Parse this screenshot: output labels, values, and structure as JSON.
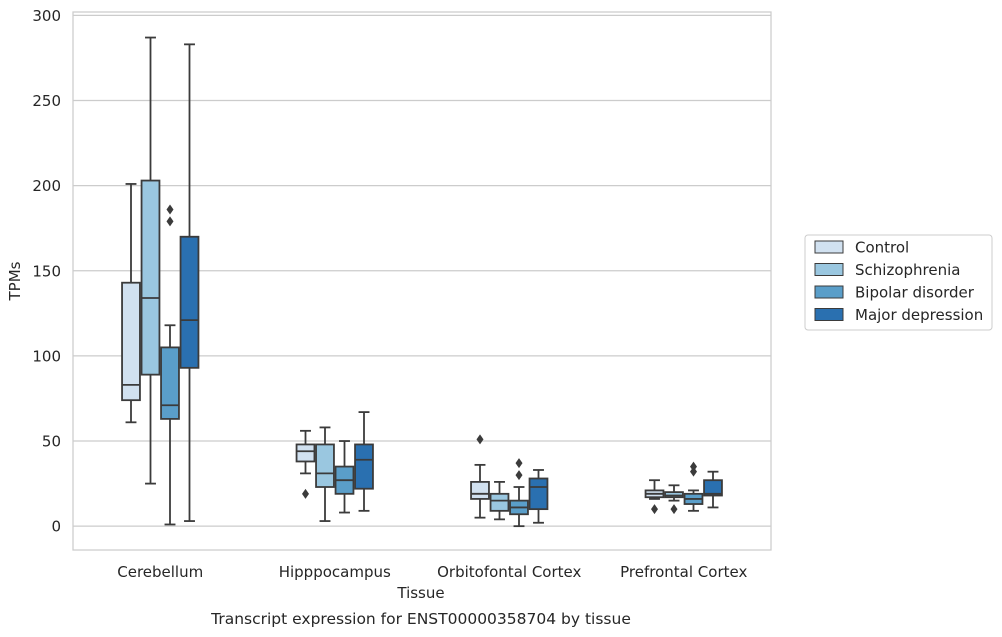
{
  "chart_data": {
    "type": "boxplot",
    "title": "Transcript expression for ENST00000358704 by tissue",
    "xlabel": "Tissue",
    "ylabel": "TPMs",
    "ylim": [
      -14,
      302
    ],
    "yticks": [
      0,
      50,
      100,
      150,
      200,
      250,
      300
    ],
    "grid": "horizontal",
    "legend_position": "right",
    "categories": [
      "Cerebellum",
      "Hipppocampus",
      "Orbitofontal Cortex",
      "Prefrontal Cortex"
    ],
    "series": [
      {
        "name": "Control",
        "color": "#d1e1f0",
        "boxes": [
          {
            "whisker_low": 61,
            "q1": 74,
            "median": 83,
            "q3": 143,
            "whisker_high": 201,
            "outliers": []
          },
          {
            "whisker_low": 31,
            "q1": 38,
            "median": 44,
            "q3": 48,
            "whisker_high": 56,
            "outliers": [
              19
            ]
          },
          {
            "whisker_low": 5,
            "q1": 16,
            "median": 19,
            "q3": 26,
            "whisker_high": 36,
            "outliers": [
              51
            ]
          },
          {
            "whisker_low": 16,
            "q1": 17,
            "median": 19,
            "q3": 21,
            "whisker_high": 27,
            "outliers": [
              10
            ]
          }
        ]
      },
      {
        "name": "Schizophrenia",
        "color": "#9ac7e0",
        "boxes": [
          {
            "whisker_low": 25,
            "q1": 89,
            "median": 134,
            "q3": 203,
            "whisker_high": 287,
            "outliers": []
          },
          {
            "whisker_low": 3,
            "q1": 23,
            "median": 31,
            "q3": 48,
            "whisker_high": 58,
            "outliers": []
          },
          {
            "whisker_low": 4,
            "q1": 9,
            "median": 15,
            "q3": 19,
            "whisker_high": 26,
            "outliers": []
          },
          {
            "whisker_low": 15,
            "q1": 17,
            "median": 18,
            "q3": 20,
            "whisker_high": 24,
            "outliers": [
              10
            ]
          }
        ]
      },
      {
        "name": "Bipolar disorder",
        "color": "#5a9ec9",
        "boxes": [
          {
            "whisker_low": 1,
            "q1": 63,
            "median": 71,
            "q3": 105,
            "whisker_high": 118,
            "outliers": [
              179,
              186
            ]
          },
          {
            "whisker_low": 8,
            "q1": 19,
            "median": 27,
            "q3": 35,
            "whisker_high": 50,
            "outliers": []
          },
          {
            "whisker_low": 0,
            "q1": 7,
            "median": 11,
            "q3": 15,
            "whisker_high": 23,
            "outliers": [
              30,
              37
            ]
          },
          {
            "whisker_low": 9,
            "q1": 13,
            "median": 16,
            "q3": 19,
            "whisker_high": 21,
            "outliers": [
              32,
              35
            ]
          }
        ]
      },
      {
        "name": "Major depression",
        "color": "#2a70b0",
        "boxes": [
          {
            "whisker_low": 3,
            "q1": 93,
            "median": 121,
            "q3": 170,
            "whisker_high": 283,
            "outliers": []
          },
          {
            "whisker_low": 9,
            "q1": 22,
            "median": 39,
            "q3": 48,
            "whisker_high": 67,
            "outliers": []
          },
          {
            "whisker_low": 2,
            "q1": 10,
            "median": 23,
            "q3": 28,
            "whisker_high": 33,
            "outliers": []
          },
          {
            "whisker_low": 11,
            "q1": 18,
            "median": 19,
            "q3": 27,
            "whisker_high": 32,
            "outliers": []
          }
        ]
      }
    ]
  }
}
